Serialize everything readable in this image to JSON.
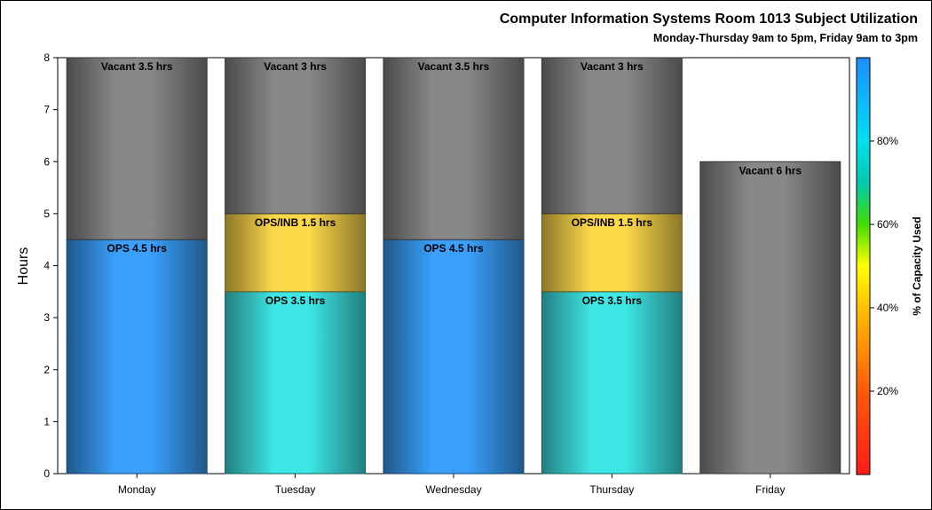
{
  "chart_data": {
    "type": "bar",
    "stacked": true,
    "title": "Computer Information Systems Room 1013 Subject Utilization",
    "subtitle": "Monday-Thursday 9am to 5pm, Friday 9am to 3pm",
    "ylabel": "Hours",
    "xlabel": "",
    "ylim": [
      0,
      8
    ],
    "yticks": [
      0,
      1,
      2,
      3,
      4,
      5,
      6,
      7,
      8
    ],
    "grid": false,
    "categories": [
      "Monday",
      "Tuesday",
      "Wednesday",
      "Thursday",
      "Friday"
    ],
    "bars": [
      {
        "category": "Monday",
        "segments": [
          {
            "label": "OPS 4.5 hrs",
            "value": 4.5,
            "pct": 0.5625
          },
          {
            "label": "Vacant 3.5 hrs",
            "value": 3.5,
            "vacant": true
          }
        ]
      },
      {
        "category": "Tuesday",
        "segments": [
          {
            "label": "OPS 3.5 hrs",
            "value": 3.5,
            "pct": 0.4375
          },
          {
            "label": "OPS/INB 1.5 hrs",
            "value": 1.5,
            "pct": 0.1875
          },
          {
            "label": "Vacant 3 hrs",
            "value": 3,
            "vacant": true
          }
        ]
      },
      {
        "category": "Wednesday",
        "segments": [
          {
            "label": "OPS 4.5 hrs",
            "value": 4.5,
            "pct": 0.5625
          },
          {
            "label": "Vacant 3.5 hrs",
            "value": 3.5,
            "vacant": true
          }
        ]
      },
      {
        "category": "Thursday",
        "segments": [
          {
            "label": "OPS 3.5 hrs",
            "value": 3.5,
            "pct": 0.4375
          },
          {
            "label": "OPS/INB 1.5 hrs",
            "value": 1.5,
            "pct": 0.1875
          },
          {
            "label": "Vacant 3 hrs",
            "value": 3,
            "vacant": true
          }
        ]
      },
      {
        "category": "Friday",
        "segments": [
          {
            "label": "Vacant 6 hrs",
            "value": 6,
            "vacant": true
          }
        ]
      }
    ],
    "colorbar": {
      "label": "% of Capacity Used",
      "range": [
        0,
        1
      ],
      "ticks": [
        "20%",
        "40%",
        "60%",
        "80%"
      ],
      "tick_values": [
        0.2,
        0.4,
        0.6,
        0.8
      ],
      "stops": [
        {
          "v": 0.0,
          "color": "#ff1a1a"
        },
        {
          "v": 0.2,
          "color": "#ff5a0a"
        },
        {
          "v": 0.4,
          "color": "#ffc000"
        },
        {
          "v": 0.5,
          "color": "#ffff00"
        },
        {
          "v": 0.6,
          "color": "#44dd00"
        },
        {
          "v": 0.7,
          "color": "#00c8b0"
        },
        {
          "v": 0.8,
          "color": "#00e0f0"
        },
        {
          "v": 1.0,
          "color": "#1e8cff"
        }
      ]
    },
    "colors": {
      "vacant": "#888888",
      "ops_high": "#3aa0fb",
      "ops_mid": "#3ee6e6",
      "ops_low": "#fdd94a"
    }
  }
}
